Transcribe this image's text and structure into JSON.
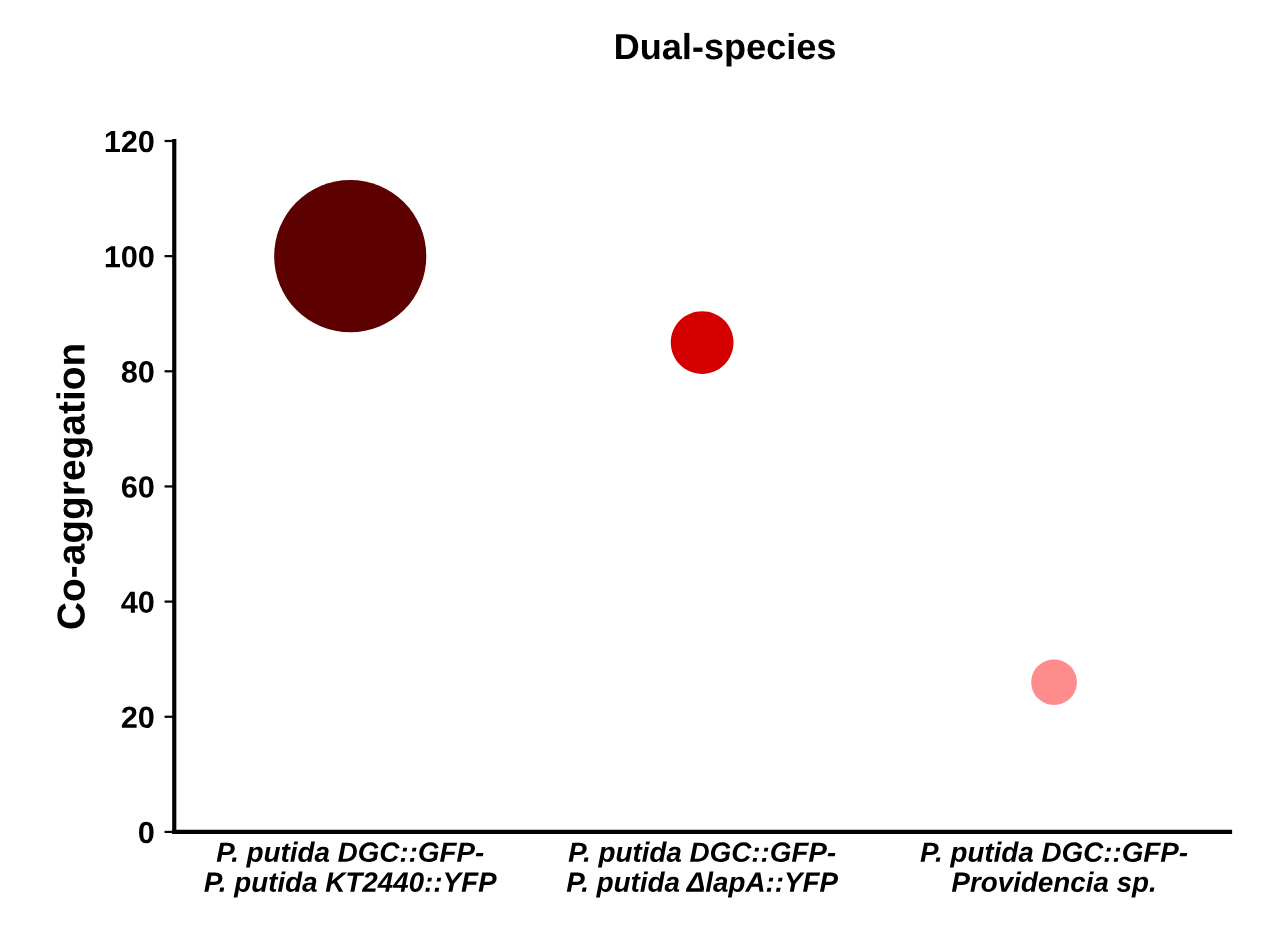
{
  "chart_data": {
    "type": "bubble",
    "title": "Dual-species",
    "ylabel": "Co-aggregation",
    "categories": [
      "P. putida DGC::GFP-\nP. putida KT2440::YFP",
      "P. putida DGC::GFP-\nP. putida ΔlapA::YFP",
      "P. putida DGC::GFP-\nProvidencia sp."
    ],
    "values": [
      100,
      85,
      26
    ],
    "sizes": [
      1,
      0.17,
      0.09
    ],
    "colors": [
      "#5c0000",
      "#d40000",
      "#ff8c8c"
    ],
    "ylim": [
      0,
      120
    ],
    "yticks": [
      0,
      20,
      40,
      60,
      80,
      100,
      120
    ],
    "grid": false,
    "legend": false
  }
}
